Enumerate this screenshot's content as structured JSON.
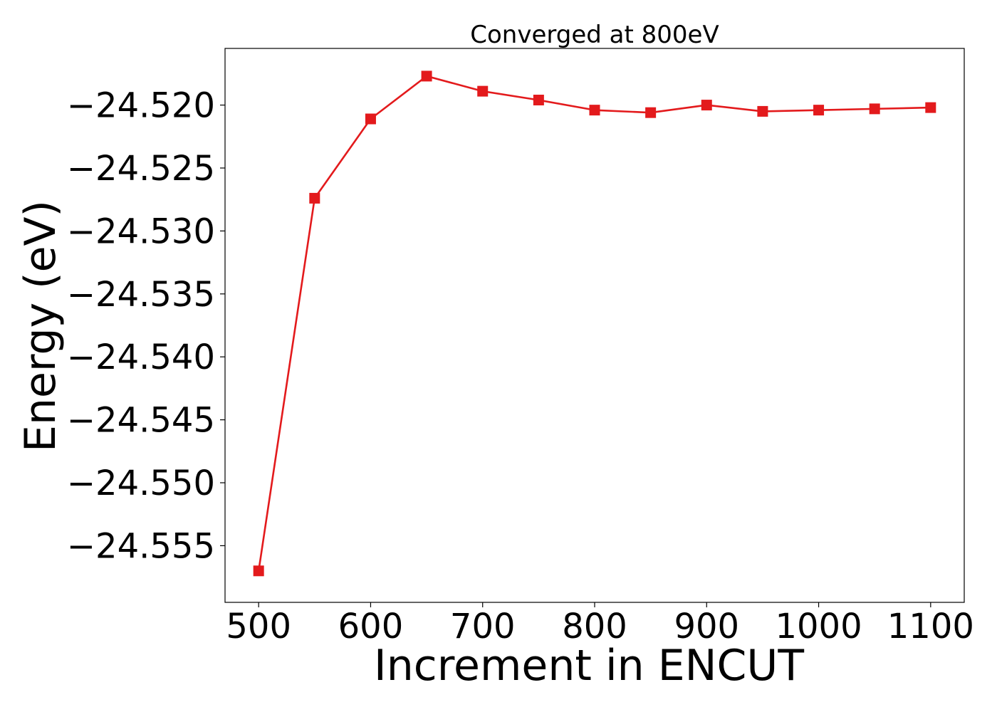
{
  "chart_data": {
    "type": "line",
    "title": "Converged at 800eV",
    "xlabel": "Increment in ENCUT",
    "ylabel": "Energy (eV)",
    "xlim": [
      470,
      1130
    ],
    "ylim": [
      -24.5595,
      -24.5155
    ],
    "xticks": [
      500,
      600,
      700,
      800,
      900,
      1000,
      1100
    ],
    "yticks": [
      -24.52,
      -24.525,
      -24.53,
      -24.535,
      -24.54,
      -24.545,
      -24.55,
      -24.555
    ],
    "ytick_labels": [
      "−24.520",
      "−24.525",
      "−24.530",
      "−24.535",
      "−24.540",
      "−24.545",
      "−24.550",
      "−24.555"
    ],
    "grid": false,
    "series": [
      {
        "color": "#e31a1c",
        "marker": "square",
        "x": [
          500,
          550,
          600,
          650,
          700,
          750,
          800,
          850,
          900,
          950,
          1000,
          1050,
          1100
        ],
        "y": [
          -24.557,
          -24.5274,
          -24.5211,
          -24.5177,
          -24.5189,
          -24.5196,
          -24.5204,
          -24.5206,
          -24.52,
          -24.5205,
          -24.5204,
          -24.5203,
          -24.5202
        ]
      }
    ]
  }
}
